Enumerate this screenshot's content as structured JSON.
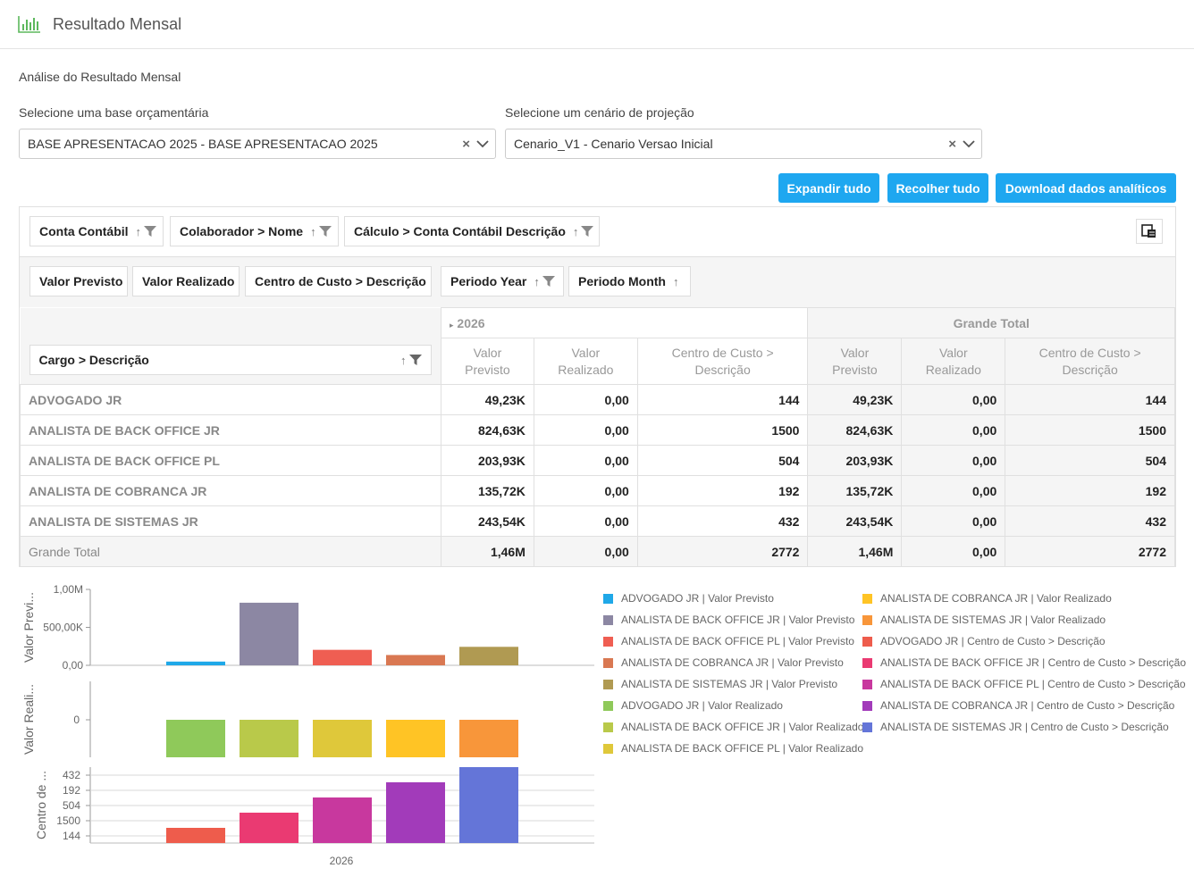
{
  "page": {
    "title": "Resultado Mensal",
    "subtitle": "Análise do Resultado Mensal"
  },
  "filters": {
    "base_label": "Selecione uma base orçamentária",
    "base_value": "BASE APRESENTACAO 2025 - BASE APRESENTACAO 2025",
    "cenario_label": "Selecione um cenário de projeção",
    "cenario_value": "Cenario_V1 - Cenario Versao Inicial"
  },
  "buttons": {
    "expand": "Expandir tudo",
    "collapse": "Recolher tudo",
    "download": "Download dados analíticos"
  },
  "pivot": {
    "filter_fields": [
      "Conta Contábil",
      "Colaborador > Nome",
      "Cálculo > Conta Contábil Descrição"
    ],
    "data_fields": [
      "Valor Previsto",
      "Valor Realizado",
      "Centro de Custo > Descrição",
      "Periodo Year",
      "Periodo Month"
    ],
    "row_field": "Cargo > Descrição",
    "year": "2026",
    "grand_total_header": "Grande Total",
    "measures": [
      "Valor Previsto",
      "Valor Realizado",
      "Centro de Custo > Descrição"
    ],
    "rows": [
      {
        "label": "ADVOGADO JR",
        "vp": "49,23K",
        "vr": "0,00",
        "cc": "144",
        "gvp": "49,23K",
        "gvr": "0,00",
        "gcc": "144"
      },
      {
        "label": "ANALISTA DE BACK OFFICE JR",
        "vp": "824,63K",
        "vr": "0,00",
        "cc": "1500",
        "gvp": "824,63K",
        "gvr": "0,00",
        "gcc": "1500"
      },
      {
        "label": "ANALISTA DE BACK OFFICE PL",
        "vp": "203,93K",
        "vr": "0,00",
        "cc": "504",
        "gvp": "203,93K",
        "gvr": "0,00",
        "gcc": "504"
      },
      {
        "label": "ANALISTA DE COBRANCA JR",
        "vp": "135,72K",
        "vr": "0,00",
        "cc": "192",
        "gvp": "135,72K",
        "gvr": "0,00",
        "gcc": "192"
      },
      {
        "label": "ANALISTA DE SISTEMAS JR",
        "vp": "243,54K",
        "vr": "0,00",
        "cc": "432",
        "gvp": "243,54K",
        "gvr": "0,00",
        "gcc": "432"
      }
    ],
    "total": {
      "label": "Grande Total",
      "vp": "1,46M",
      "vr": "0,00",
      "cc": "2772",
      "gvp": "1,46M",
      "gvr": "0,00",
      "gcc": "2772"
    }
  },
  "chart_data": {
    "type": "bar",
    "x_label": "2026",
    "panes": [
      {
        "ylabel": "Valor Previ...",
        "ticks": [
          "1,00M",
          "500,00K",
          "0,00"
        ],
        "ylim": [
          0,
          1000000
        ],
        "series": [
          {
            "name": "ADVOGADO JR | Valor Previsto",
            "value": 49230,
            "color": "#1fa8e8"
          },
          {
            "name": "ANALISTA DE BACK OFFICE JR | Valor Previsto",
            "value": 824630,
            "color": "#8c87a3"
          },
          {
            "name": "ANALISTA DE BACK OFFICE PL | Valor Previsto",
            "value": 203930,
            "color": "#ef5e52"
          },
          {
            "name": "ANALISTA DE COBRANCA JR | Valor Previsto",
            "value": 135720,
            "color": "#d97852"
          },
          {
            "name": "ANALISTA DE SISTEMAS JR | Valor Previsto",
            "value": 243540,
            "color": "#b09a52"
          }
        ]
      },
      {
        "ylabel": "Valor Reali...",
        "ticks": [
          "0"
        ],
        "series": [
          {
            "name": "ADVOGADO JR | Valor Realizado",
            "value": 0,
            "color": "#8fc95a"
          },
          {
            "name": "ANALISTA DE BACK OFFICE JR | Valor Realizado",
            "value": 0,
            "color": "#b9c94a"
          },
          {
            "name": "ANALISTA DE BACK OFFICE PL | Valor Realizado",
            "value": 0,
            "color": "#dfc83a"
          },
          {
            "name": "ANALISTA DE COBRANCA JR | Valor Realizado",
            "value": 0,
            "color": "#ffc425"
          },
          {
            "name": "ANALISTA DE SISTEMAS JR | Valor Realizado",
            "value": 0,
            "color": "#f8963a"
          }
        ]
      },
      {
        "ylabel": "Centro de ...",
        "ticks": [
          "432",
          "192",
          "504",
          "1500",
          "144"
        ],
        "series": [
          {
            "name": "ADVOGADO JR | Centro de Custo > Descrição",
            "value": "144",
            "color": "#ee5c4c"
          },
          {
            "name": "ANALISTA DE BACK OFFICE JR | Centro de Custo > Descrição",
            "value": "1500",
            "color": "#ea3a72"
          },
          {
            "name": "ANALISTA DE BACK OFFICE PL | Centro de Custo > Descrição",
            "value": "504",
            "color": "#c8389e"
          },
          {
            "name": "ANALISTA DE COBRANCA JR | Centro de Custo > Descrição",
            "value": "192",
            "color": "#a23bba"
          },
          {
            "name": "ANALISTA DE SISTEMAS JR | Centro de Custo > Descrição",
            "value": "432",
            "color": "#6475d8"
          }
        ]
      }
    ]
  }
}
